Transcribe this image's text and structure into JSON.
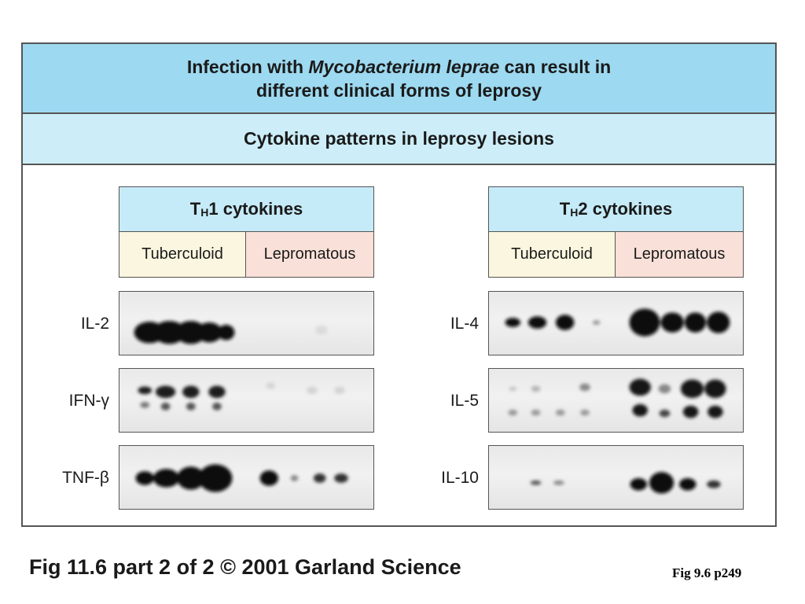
{
  "title": {
    "line1_prefix": "Infection with ",
    "line1_species": "Mycobacterium leprae",
    "line1_suffix": " can result in",
    "line2": "different clinical forms of leprosy"
  },
  "subtitle": "Cytokine patterns in leprosy lesions",
  "panels": {
    "th1": {
      "title_T": "T",
      "title_sub": "H",
      "title_rest": "1 cytokines",
      "col_tuberculoid": "Tuberculoid",
      "col_lepromatous": "Lepromatous",
      "rows": [
        "IL-2",
        "IFN-γ",
        "TNF-β"
      ]
    },
    "th2": {
      "title_T": "T",
      "title_sub": "H",
      "title_rest": "2 cytokines",
      "col_tuberculoid": "Tuberculoid",
      "col_lepromatous": "Lepromatous",
      "rows": [
        "IL-4",
        "IL-5",
        "IL-10"
      ]
    }
  },
  "caption": "Fig 11.6 part 2 of 2  © 2001 Garland Science",
  "reference": "Fig 9.6 p249",
  "colors": {
    "title_band": "#9dd9f0",
    "subtitle_band": "#cdeef9",
    "panel_title": "#c6ebf8",
    "tuberculoid_bg": "#fbf6df",
    "lepromatous_bg": "#f9e0d8"
  }
}
